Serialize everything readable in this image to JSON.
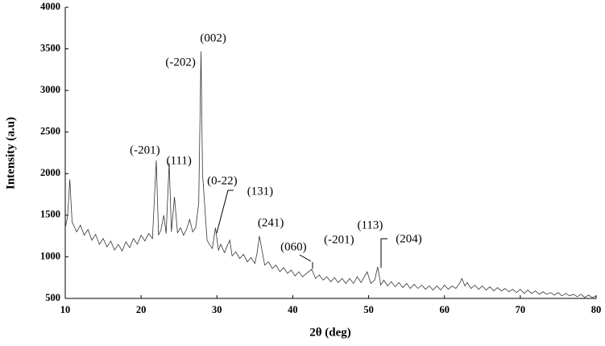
{
  "chart_data": {
    "type": "line",
    "x_label": "2θ (deg)",
    "y_label": "Intensity (a.u)",
    "xlim": [
      10,
      80
    ],
    "xticks": [
      10,
      20,
      30,
      40,
      50,
      60,
      70,
      80
    ],
    "ylim": [
      500,
      4000
    ],
    "yticks": [
      500,
      1000,
      1500,
      2000,
      2500,
      3000,
      3500,
      4000
    ],
    "grid": false,
    "series": [
      {
        "color": "#333333",
        "x": [
          10,
          10.3,
          10.6,
          10.9,
          11.5,
          12,
          12.5,
          13,
          13.5,
          14,
          14.5,
          15,
          15.5,
          16,
          16.5,
          17,
          17.5,
          18,
          18.5,
          19,
          19.5,
          20,
          20.5,
          21,
          21.5,
          22,
          22.3,
          22.6,
          23,
          23.3,
          23.7,
          24,
          24.4,
          24.8,
          25.2,
          25.6,
          26,
          26.4,
          26.8,
          27.2,
          27.6,
          27.9,
          28.1,
          28.4,
          28.7,
          29,
          29.4,
          29.8,
          30.2,
          30.5,
          31,
          31.3,
          31.7,
          32,
          32.5,
          33,
          33.5,
          34,
          34.5,
          35,
          35.3,
          35.6,
          35.9,
          36.3,
          36.8,
          37.3,
          37.8,
          38.3,
          38.8,
          39.3,
          39.8,
          40.3,
          40.8,
          41.3,
          41.8,
          42.5,
          43,
          43.5,
          44,
          44.5,
          45,
          45.5,
          46,
          46.5,
          47,
          47.5,
          48,
          48.5,
          49,
          49.8,
          50.3,
          50.8,
          51.2,
          51.6,
          52,
          52.5,
          53,
          53.5,
          54,
          54.5,
          55,
          55.5,
          56,
          56.5,
          57,
          57.5,
          58,
          58.5,
          59,
          59.5,
          60,
          60.5,
          61,
          61.5,
          62,
          62.3,
          62.7,
          63,
          63.5,
          64,
          64.5,
          65,
          65.5,
          66,
          66.5,
          67,
          67.5,
          68,
          68.5,
          69,
          69.5,
          70,
          70.5,
          71,
          71.5,
          72,
          72.5,
          73,
          73.5,
          74,
          74.5,
          75,
          75.5,
          76,
          76.5,
          77,
          77.5,
          78,
          78.5,
          79,
          79.5,
          80
        ],
        "values": [
          1350,
          1480,
          1930,
          1420,
          1300,
          1380,
          1260,
          1330,
          1200,
          1270,
          1150,
          1220,
          1120,
          1190,
          1080,
          1150,
          1070,
          1180,
          1110,
          1220,
          1150,
          1260,
          1190,
          1280,
          1220,
          2160,
          1260,
          1320,
          1500,
          1280,
          2130,
          1300,
          1720,
          1290,
          1350,
          1260,
          1330,
          1450,
          1300,
          1350,
          1650,
          3470,
          2000,
          1600,
          1200,
          1150,
          1100,
          1350,
          1080,
          1150,
          1050,
          1120,
          1200,
          1010,
          1060,
          980,
          1030,
          940,
          990,
          920,
          1050,
          1250,
          1100,
          900,
          940,
          860,
          900,
          820,
          870,
          800,
          840,
          770,
          820,
          760,
          800,
          850,
          740,
          780,
          720,
          760,
          700,
          750,
          690,
          740,
          680,
          740,
          680,
          760,
          690,
          820,
          680,
          720,
          880,
          660,
          720,
          650,
          700,
          640,
          690,
          630,
          680,
          620,
          670,
          620,
          660,
          610,
          650,
          600,
          650,
          600,
          660,
          610,
          650,
          620,
          680,
          740,
          650,
          690,
          620,
          660,
          610,
          650,
          600,
          640,
          590,
          630,
          590,
          620,
          580,
          610,
          570,
          610,
          560,
          600,
          560,
          590,
          550,
          580,
          550,
          570,
          540,
          570,
          530,
          560,
          530,
          550,
          520,
          550,
          510,
          540,
          510,
          530
        ]
      }
    ],
    "annotations": [
      {
        "text": "(002)",
        "x": 29.5,
        "y": 3622
      },
      {
        "text": "(-202)",
        "x": 25.2,
        "y": 3331
      },
      {
        "text": "(-201)",
        "x": 20.5,
        "y": 2273
      },
      {
        "text": "(111)",
        "x": 25.0,
        "y": 2147
      },
      {
        "text": "(0-22)",
        "x": 30.7,
        "y": 1905
      },
      {
        "text": "(131)",
        "x": 35.7,
        "y": 1779
      },
      {
        "text": "(241)",
        "x": 37.1,
        "y": 1400
      },
      {
        "text": "(060)",
        "x": 40.1,
        "y": 1110
      },
      {
        "text": "(-201)",
        "x": 46.1,
        "y": 1197
      },
      {
        "text": "(113)",
        "x": 50.2,
        "y": 1371
      },
      {
        "text": "(204)",
        "x": 55.3,
        "y": 1207
      }
    ]
  }
}
